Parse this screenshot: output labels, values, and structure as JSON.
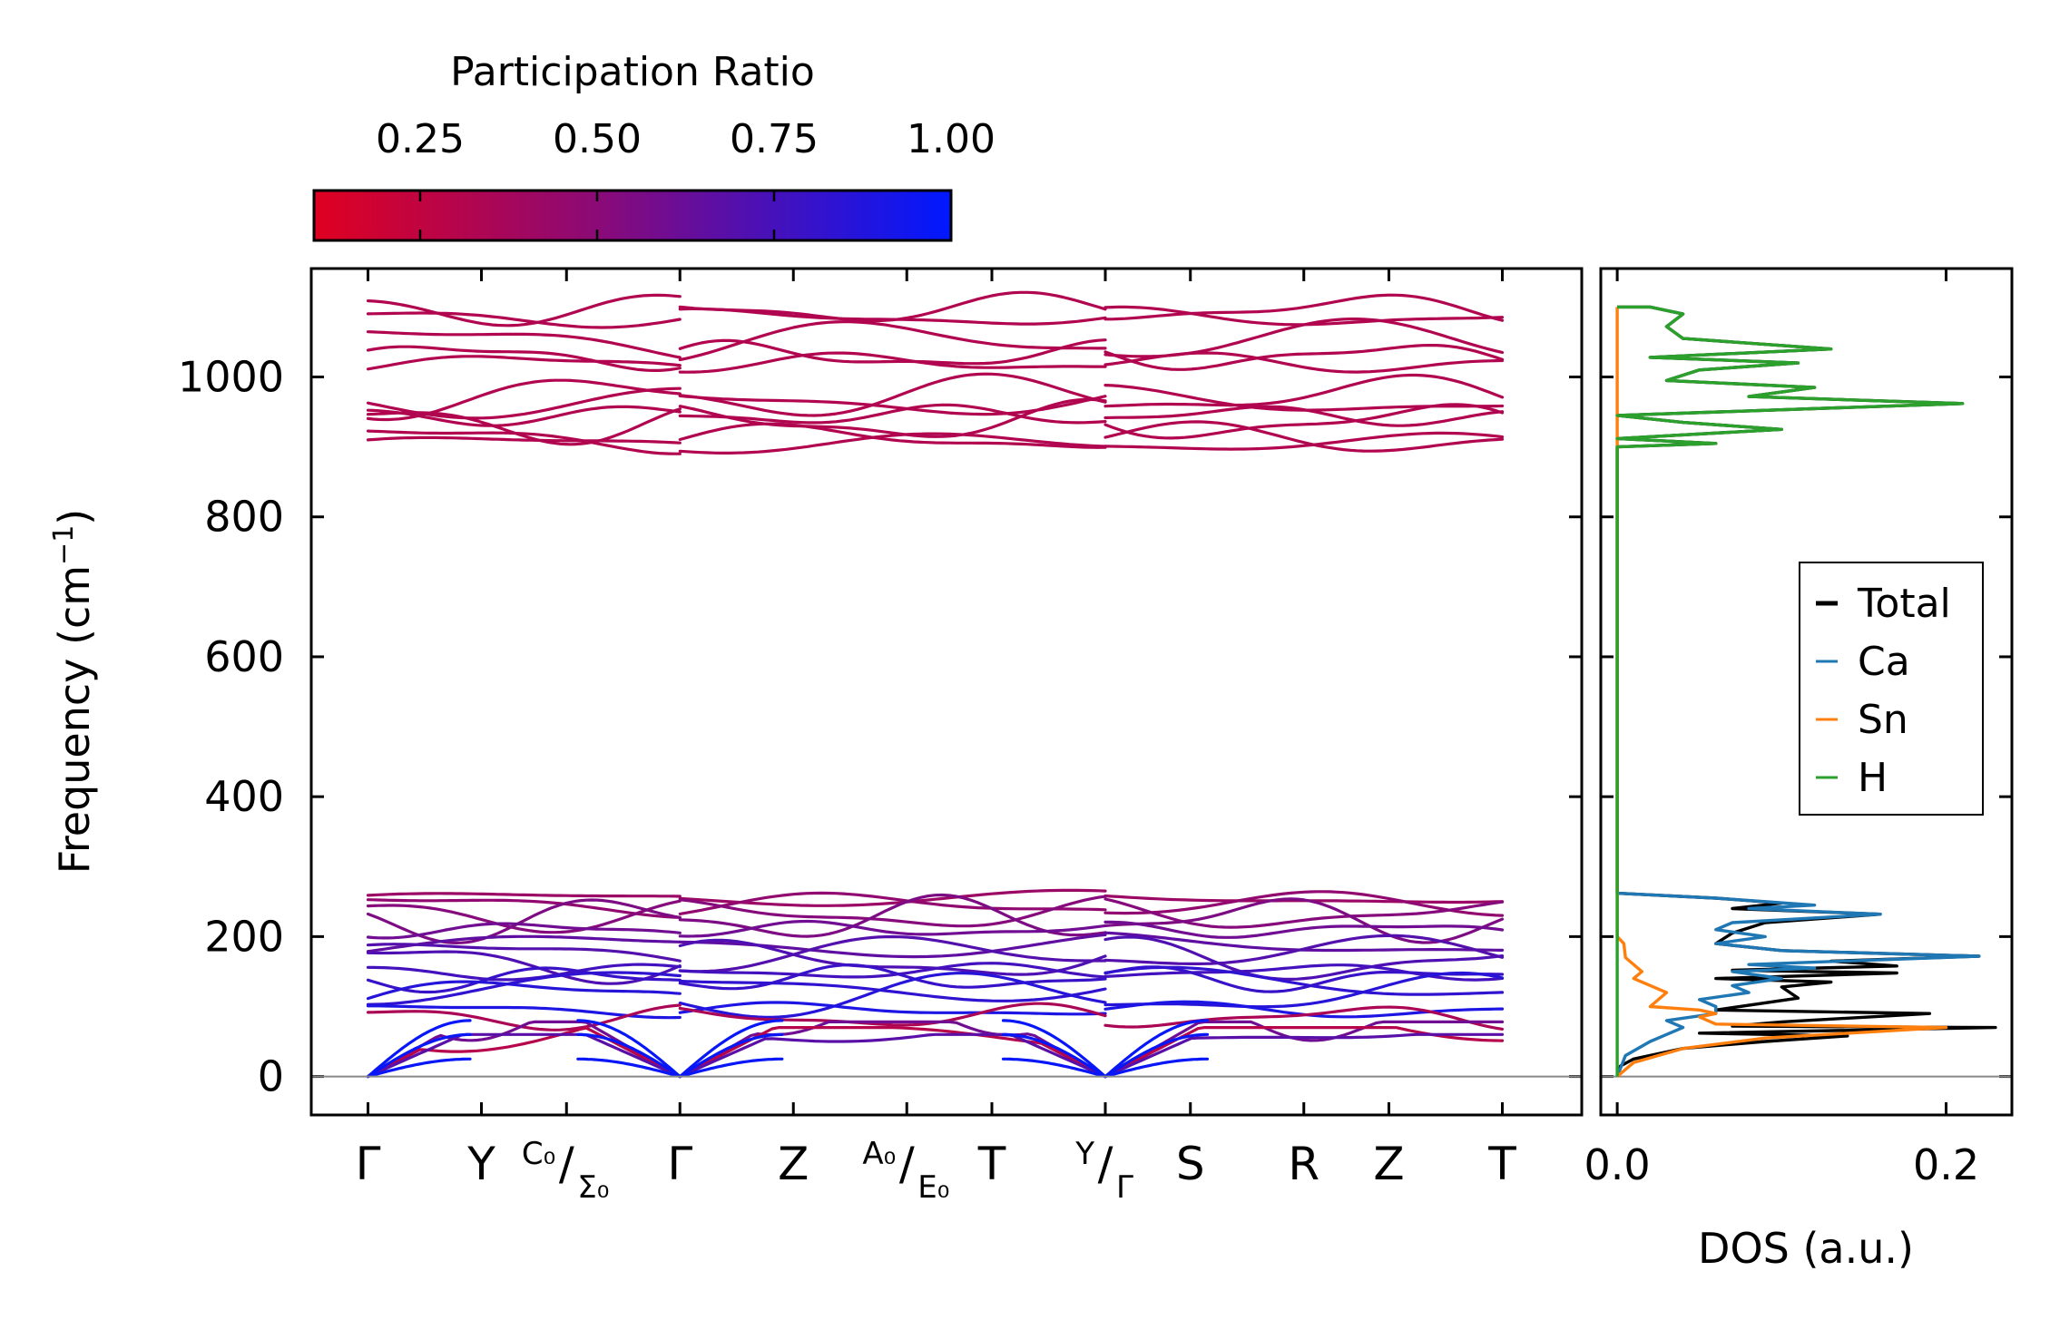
{
  "chart_data": [
    {
      "type": "line",
      "name": "phonon-band-structure",
      "ylabel": "Frequency (cm",
      "ylabel_sup": "−1",
      "ylabel_close": ")",
      "ylim": [
        -55,
        1155
      ],
      "yticks": [
        0,
        200,
        400,
        600,
        800,
        1000
      ],
      "grid": false,
      "k_points": [
        {
          "label": "Γ",
          "x": 0
        },
        {
          "label": "Y",
          "x": 1
        },
        {
          "label": "C₀",
          "label2": "Σ₀",
          "x": 1.75
        },
        {
          "label": "Γ",
          "x": 2.75
        },
        {
          "label": "Z",
          "x": 3.75
        },
        {
          "label": "A₀",
          "label2": "E₀",
          "x": 4.75
        },
        {
          "label": "T",
          "x": 5.5
        },
        {
          "label": "Y",
          "label2": "Γ",
          "x": 6.5
        },
        {
          "label": "S",
          "x": 7.25
        },
        {
          "label": "R",
          "x": 8.25
        },
        {
          "label": "Z",
          "x": 9.0
        },
        {
          "label": "T",
          "x": 10.0
        }
      ],
      "xlim": [
        -0.5,
        10.7
      ],
      "zero_line": 0,
      "high_branches_cm1": [
        905,
        912,
        935,
        945,
        965,
        972,
        1020,
        1030,
        1050,
        1085,
        1097
      ],
      "low_branches_cm1": [
        {
          "value": 255,
          "pr": 0.42
        },
        {
          "value": 245,
          "pr": 0.47
        },
        {
          "value": 232,
          "pr": 0.52
        },
        {
          "value": 225,
          "pr": 0.55
        },
        {
          "value": 210,
          "pr": 0.6
        },
        {
          "value": 188,
          "pr": 0.66
        },
        {
          "value": 175,
          "pr": 0.7
        },
        {
          "value": 165,
          "pr": 0.72
        },
        {
          "value": 150,
          "pr": 0.76
        },
        {
          "value": 140,
          "pr": 0.8
        },
        {
          "value": 130,
          "pr": 0.83
        },
        {
          "value": 115,
          "pr": 0.86
        },
        {
          "value": 95,
          "pr": 0.9
        },
        {
          "value": 85,
          "pr": 0.35
        },
        {
          "value": 78,
          "pr": 0.6
        },
        {
          "value": 70,
          "pr": 0.3
        },
        {
          "value": 60,
          "pr": 0.68
        }
      ],
      "high_branch_pr": 0.32
    },
    {
      "type": "line",
      "name": "density-of-states",
      "xlabel": "DOS (a.u.)",
      "xlim": [
        -0.01,
        0.24
      ],
      "xticks": [
        0.0,
        0.2
      ],
      "xtick_labels": [
        "0.0",
        "0.2"
      ],
      "ylim": [
        -55,
        1155
      ],
      "legend_position": "center-right",
      "series": [
        {
          "name": "Total",
          "color": "#000000",
          "points": [
            [
              0,
              0
            ],
            [
              0.002,
              15
            ],
            [
              0.01,
              25
            ],
            [
              0.04,
              40
            ],
            [
              0.09,
              50
            ],
            [
              0.14,
              58
            ],
            [
              0.05,
              62
            ],
            [
              0.23,
              70
            ],
            [
              0.07,
              72
            ],
            [
              0.1,
              78
            ],
            [
              0.19,
              90
            ],
            [
              0.06,
              95
            ],
            [
              0.11,
              112
            ],
            [
              0.1,
              128
            ],
            [
              0.13,
              135
            ],
            [
              0.06,
              140
            ],
            [
              0.17,
              148
            ],
            [
              0.07,
              152
            ],
            [
              0.17,
              158
            ],
            [
              0.13,
              165
            ],
            [
              0.22,
              172
            ],
            [
              0.1,
              180
            ],
            [
              0.06,
              190
            ],
            [
              0.07,
              205
            ],
            [
              0.09,
              220
            ],
            [
              0.16,
              232
            ],
            [
              0.07,
              240
            ],
            [
              0.1,
              248
            ],
            [
              0.06,
              255
            ],
            [
              0.0,
              262
            ],
            [
              0.0,
              900
            ],
            [
              0.06,
              905
            ],
            [
              0.0,
              912
            ],
            [
              0.1,
              925
            ],
            [
              0.04,
              935
            ],
            [
              0.0,
              945
            ],
            [
              0.21,
              962
            ],
            [
              0.08,
              972
            ],
            [
              0.12,
              985
            ],
            [
              0.03,
              995
            ],
            [
              0.05,
              1010
            ],
            [
              0.11,
              1020
            ],
            [
              0.02,
              1028
            ],
            [
              0.13,
              1040
            ],
            [
              0.04,
              1055
            ],
            [
              0.03,
              1072
            ],
            [
              0.04,
              1090
            ],
            [
              0.02,
              1100
            ],
            [
              0.0,
              1100
            ]
          ]
        },
        {
          "name": "Ca",
          "color": "#1f77b4",
          "points": [
            [
              0,
              0
            ],
            [
              0.005,
              30
            ],
            [
              0.02,
              50
            ],
            [
              0.04,
              70
            ],
            [
              0.03,
              80
            ],
            [
              0.06,
              90
            ],
            [
              0.06,
              100
            ],
            [
              0.05,
              110
            ],
            [
              0.08,
              120
            ],
            [
              0.07,
              130
            ],
            [
              0.1,
              140
            ],
            [
              0.07,
              150
            ],
            [
              0.12,
              155
            ],
            [
              0.08,
              160
            ],
            [
              0.22,
              172
            ],
            [
              0.1,
              180
            ],
            [
              0.06,
              190
            ],
            [
              0.09,
              200
            ],
            [
              0.06,
              210
            ],
            [
              0.07,
              220
            ],
            [
              0.16,
              232
            ],
            [
              0.08,
              240
            ],
            [
              0.12,
              245
            ],
            [
              0.06,
              255
            ],
            [
              0.0,
              262
            ]
          ]
        },
        {
          "name": "Sn",
          "color": "#ff7f0e",
          "points": [
            [
              0,
              0
            ],
            [
              0.01,
              20
            ],
            [
              0.04,
              40
            ],
            [
              0.09,
              55
            ],
            [
              0.2,
              70
            ],
            [
              0.06,
              75
            ],
            [
              0.05,
              85
            ],
            [
              0.06,
              90
            ],
            [
              0.05,
              95
            ],
            [
              0.02,
              100
            ],
            [
              0.03,
              120
            ],
            [
              0.01,
              140
            ],
            [
              0.015,
              150
            ],
            [
              0.005,
              170
            ],
            [
              0.004,
              190
            ],
            [
              0.0,
              200
            ],
            [
              0.0,
              1100
            ]
          ]
        },
        {
          "name": "H",
          "color": "#2ca02c",
          "points": [
            [
              0,
              0
            ],
            [
              0,
              900
            ],
            [
              0.06,
              905
            ],
            [
              0.0,
              912
            ],
            [
              0.1,
              925
            ],
            [
              0.04,
              935
            ],
            [
              0.0,
              945
            ],
            [
              0.21,
              962
            ],
            [
              0.08,
              972
            ],
            [
              0.12,
              985
            ],
            [
              0.03,
              995
            ],
            [
              0.05,
              1010
            ],
            [
              0.11,
              1020
            ],
            [
              0.02,
              1028
            ],
            [
              0.13,
              1040
            ],
            [
              0.04,
              1055
            ],
            [
              0.03,
              1072
            ],
            [
              0.04,
              1090
            ],
            [
              0.02,
              1100
            ],
            [
              0.0,
              1100
            ]
          ]
        }
      ]
    }
  ],
  "colorbar": {
    "title": "Participation Ratio",
    "ticks": [
      0.25,
      0.5,
      0.75,
      1.0
    ],
    "tick_labels": [
      "0.25",
      "0.50",
      "0.75",
      "1.00"
    ],
    "range": [
      0.1,
      1.0
    ],
    "color_low": "#e00020",
    "color_mid": "#8a0a78",
    "color_high": "#0018ff"
  },
  "yticklabels": [
    "0",
    "200",
    "400",
    "600",
    "800",
    "1000"
  ]
}
